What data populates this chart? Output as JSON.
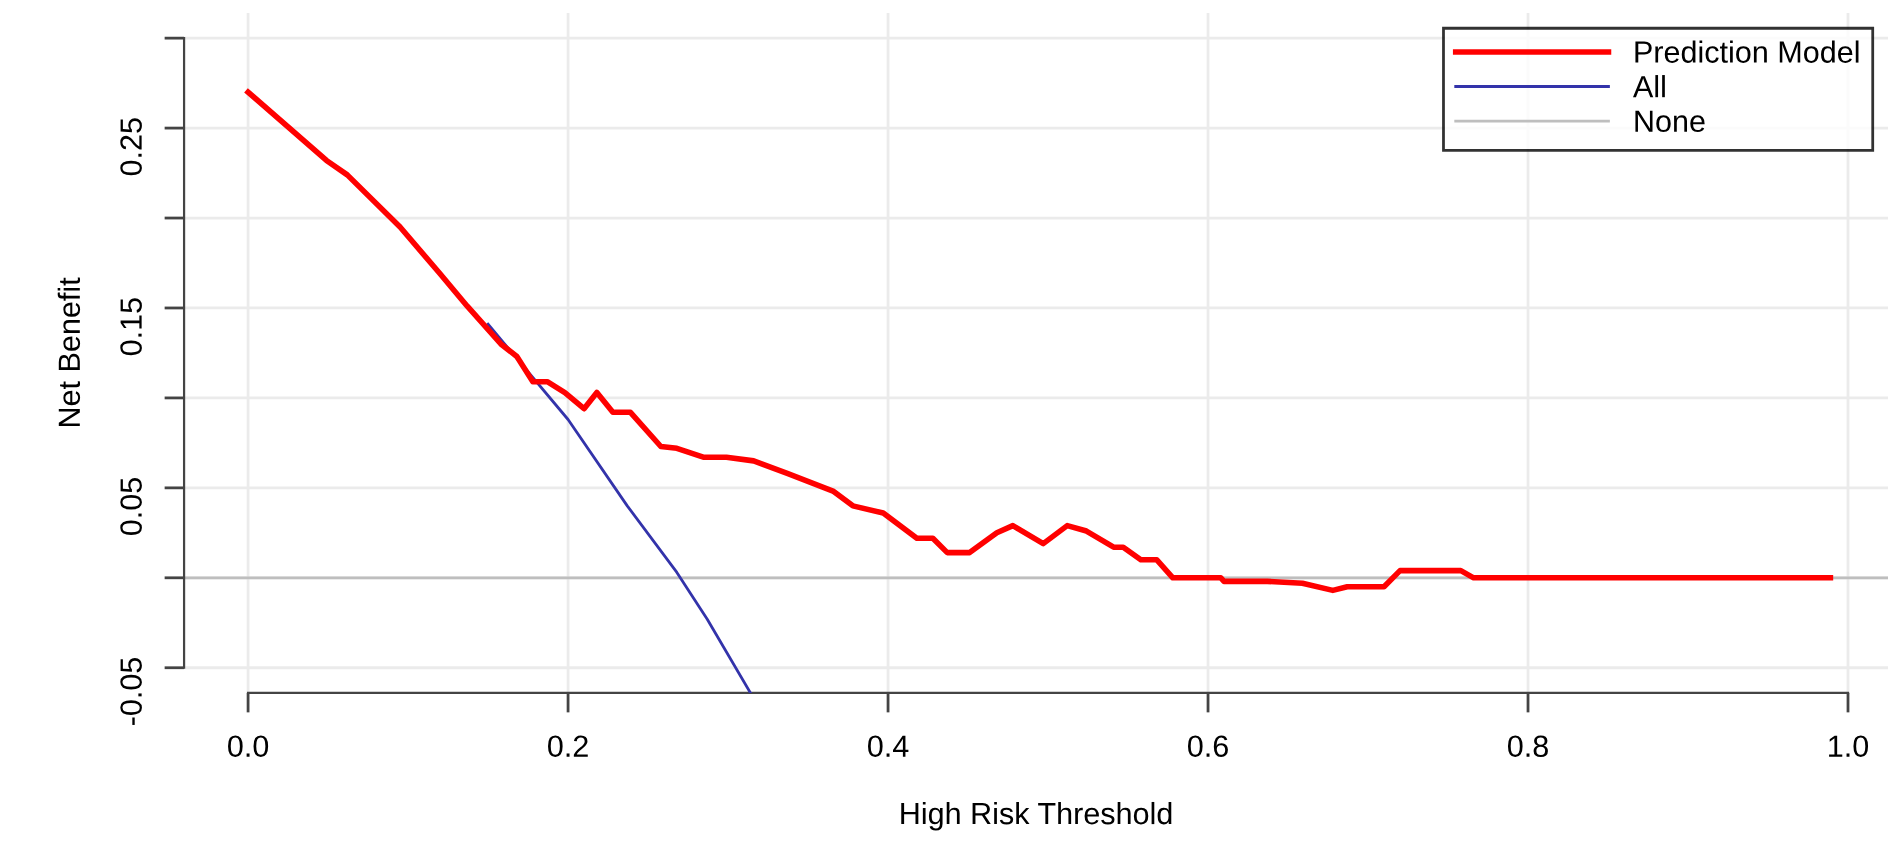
{
  "chart_data": {
    "type": "line",
    "xlabel": "High Risk Threshold",
    "ylabel": "Net Benefit",
    "xlim": [
      -0.04,
      1.025
    ],
    "ylim": [
      -0.064,
      0.314
    ],
    "xticks": [
      {
        "value": 0,
        "label": "0.0"
      },
      {
        "value": 0.2,
        "label": "0.2"
      },
      {
        "value": 0.4,
        "label": "0.4"
      },
      {
        "value": 0.6,
        "label": "0.6"
      },
      {
        "value": 0.8,
        "label": "0.8"
      },
      {
        "value": 1,
        "label": "1.0"
      }
    ],
    "yticks": [
      -0.05,
      {
        "value": 0,
        "label": null
      },
      0.05,
      {
        "value": 0.1,
        "label": null
      },
      0.15,
      {
        "value": 0.2,
        "label": null
      },
      0.25,
      {
        "value": 0.3,
        "label": null
      }
    ],
    "grid": true,
    "legend": "top right",
    "marker": "none",
    "line_style": "solid",
    "series": [
      {
        "name": "Prediction Model",
        "color": "#ff0000",
        "x": [
          0,
          0.049,
          0.062,
          0.095,
          0.12,
          0.137,
          0.158,
          0.168,
          0.178,
          0.187,
          0.198,
          0.21,
          0.218,
          0.228,
          0.239,
          0.258,
          0.268,
          0.285,
          0.299,
          0.316,
          0.337,
          0.366,
          0.378,
          0.397,
          0.418,
          0.428,
          0.437,
          0.451,
          0.468,
          0.478,
          0.497,
          0.512,
          0.524,
          0.541,
          0.547,
          0.558,
          0.568,
          0.578,
          0.608,
          0.61,
          0.637,
          0.659,
          0.678,
          0.687,
          0.71,
          0.72,
          0.758,
          0.766,
          0.989
        ],
        "values": [
          0.27,
          0.232,
          0.224,
          0.195,
          0.169,
          0.151,
          0.13,
          0.123,
          0.109,
          0.109,
          0.103,
          0.094,
          0.103,
          0.092,
          0.092,
          0.073,
          0.072,
          0.067,
          0.067,
          0.065,
          0.058,
          0.048,
          0.04,
          0.036,
          0.022,
          0.022,
          0.014,
          0.014,
          0.025,
          0.029,
          0.019,
          0.029,
          0.026,
          0.017,
          0.017,
          0.01,
          0.01,
          0,
          0,
          -0.002,
          -0.002,
          -0.003,
          -0.007,
          -0.005,
          -0.005,
          0.004,
          0.004,
          0,
          0
        ]
      },
      {
        "name": "All",
        "color": "#3333aa",
        "x": [
          0.15,
          0.2,
          0.237,
          0.268,
          0.287,
          0.314
        ],
        "values": [
          0.141,
          0.088,
          0.04,
          0.003,
          -0.023,
          -0.064
        ]
      }
    ],
    "ref_lines": [
      {
        "axis": "y",
        "value": 0,
        "label": "None",
        "color": "#bebebe",
        "line_style": "solid"
      }
    ]
  }
}
